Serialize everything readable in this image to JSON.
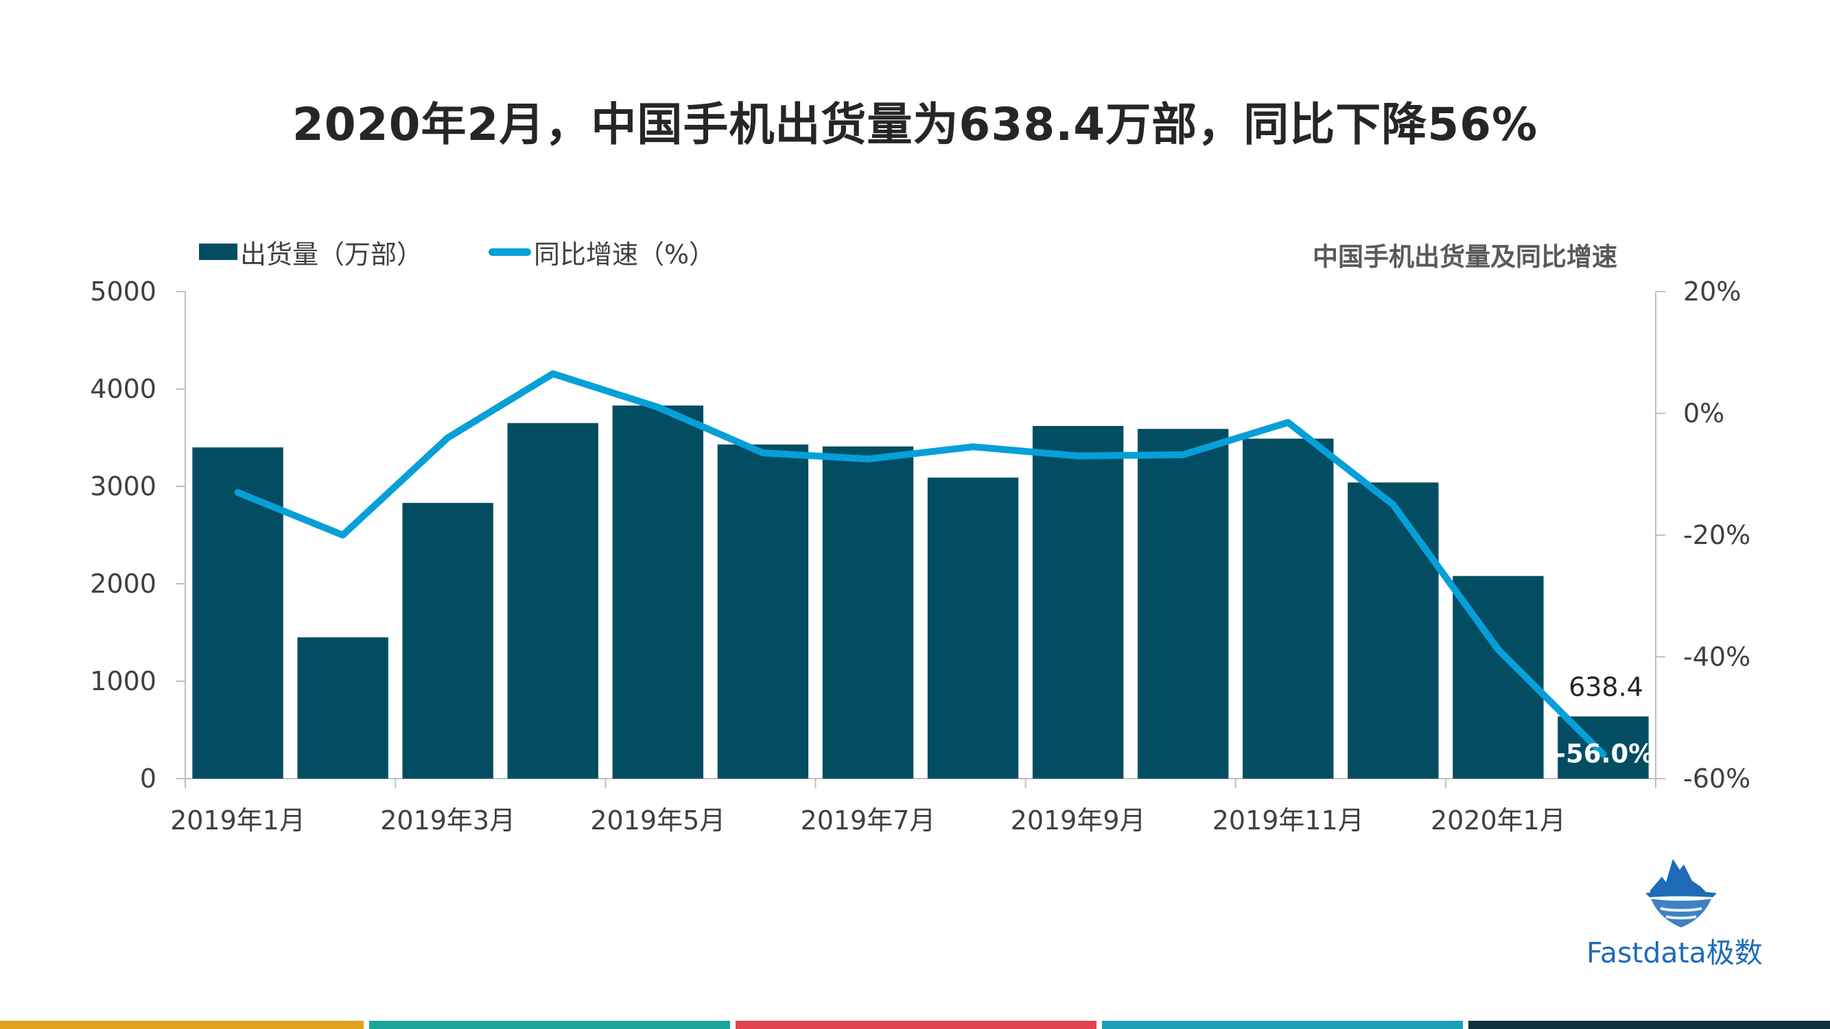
{
  "header": {
    "title": "2020年2月，中国手机出货量为638.4万部，同比下降56%"
  },
  "chart_data": {
    "type": "bar",
    "title": "2020年2月，中国手机出货量为638.4万部，同比下降56%",
    "subtitle": "中国手机出货量及同比增速",
    "categories": [
      "2019年1月",
      "2019年2月",
      "2019年3月",
      "2019年4月",
      "2019年5月",
      "2019年6月",
      "2019年7月",
      "2019年8月",
      "2019年9月",
      "2019年10月",
      "2019年11月",
      "2019年12月",
      "2020年1月",
      "2020年2月"
    ],
    "shown_x_ticks": [
      "2019年1月",
      "",
      "2019年3月",
      "",
      "2019年5月",
      "",
      "2019年7月",
      "",
      "2019年9月",
      "",
      "2019年11月",
      "",
      "2020年1月",
      ""
    ],
    "series": [
      {
        "name": "出货量（万部）",
        "type": "bar",
        "axis": "left",
        "color": "#034d63",
        "values": [
          3400,
          1450,
          2830,
          3650,
          3830,
          3430,
          3410,
          3090,
          3620,
          3590,
          3490,
          3040,
          2080,
          638.4
        ]
      },
      {
        "name": "同比增速（%）",
        "type": "line",
        "axis": "right",
        "color": "#079fd8",
        "values": [
          -13,
          -20,
          -4,
          6.5,
          1,
          -6.5,
          -7.5,
          -5.5,
          -7,
          -6.8,
          -1.5,
          -15,
          -38.8,
          -56.0
        ]
      }
    ],
    "y_left": {
      "min": 0,
      "max": 5000,
      "ticks": [
        "0",
        "1000",
        "2000",
        "3000",
        "4000",
        "5000"
      ]
    },
    "y_right": {
      "min": -60,
      "max": 20,
      "ticks": [
        "-60%",
        "-40%",
        "-20%",
        "0%",
        "20%"
      ]
    },
    "data_labels": {
      "bar_last": "638.4",
      "line_last": "-56.0%"
    },
    "legend_position": "top-left",
    "grid": false
  },
  "brand": {
    "name": "Fastdata极数",
    "logo_icon": "iceberg-icon",
    "text_color": "#1f6bb8"
  },
  "footer": {
    "stripe_colors": [
      "#e0a21a",
      "#1aa59a",
      "#e3434f",
      "#1aa0b4",
      "#10323f"
    ]
  }
}
